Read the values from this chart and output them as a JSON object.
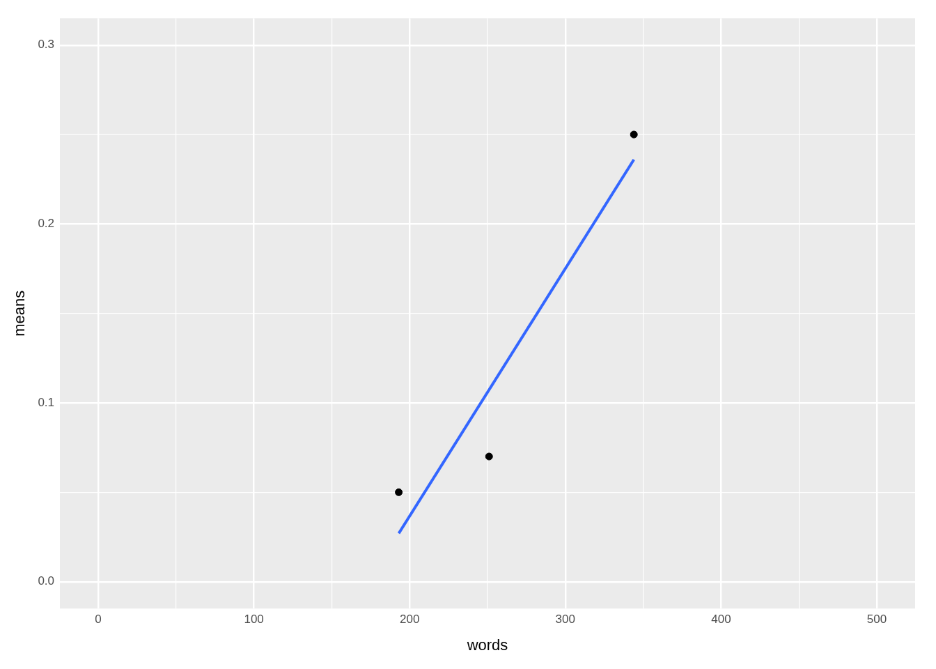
{
  "chart_data": {
    "type": "scatter",
    "xlabel": "words",
    "ylabel": "means",
    "xlim": [
      -24.6,
      524.6
    ],
    "ylim": [
      -0.015,
      0.315
    ],
    "xticks": [
      0,
      {
        "value": 50,
        "label": null
      },
      100,
      {
        "value": 150,
        "label": null
      },
      200,
      {
        "value": 250,
        "label": null
      },
      300,
      {
        "value": 350,
        "label": null
      },
      400,
      {
        "value": 450,
        "label": null
      },
      500
    ],
    "yticks": [
      {
        "value": 0,
        "label": "0.0"
      },
      {
        "value": 0.05,
        "label": null
      },
      0.1,
      {
        "value": 0.15,
        "label": null
      },
      0.2,
      {
        "value": 0.25,
        "label": null
      },
      0.3
    ],
    "grid": true,
    "legend": false,
    "series": [
      {
        "marker": "circle",
        "color": "#000000",
        "x": [
          193,
          251,
          344
        ],
        "values": [
          0.05,
          0.07,
          0.25
        ]
      },
      {
        "type": "line",
        "marker": "none",
        "color": "#3366ff",
        "x": [
          193,
          344
        ],
        "values": [
          0.027,
          0.236
        ]
      }
    ]
  }
}
